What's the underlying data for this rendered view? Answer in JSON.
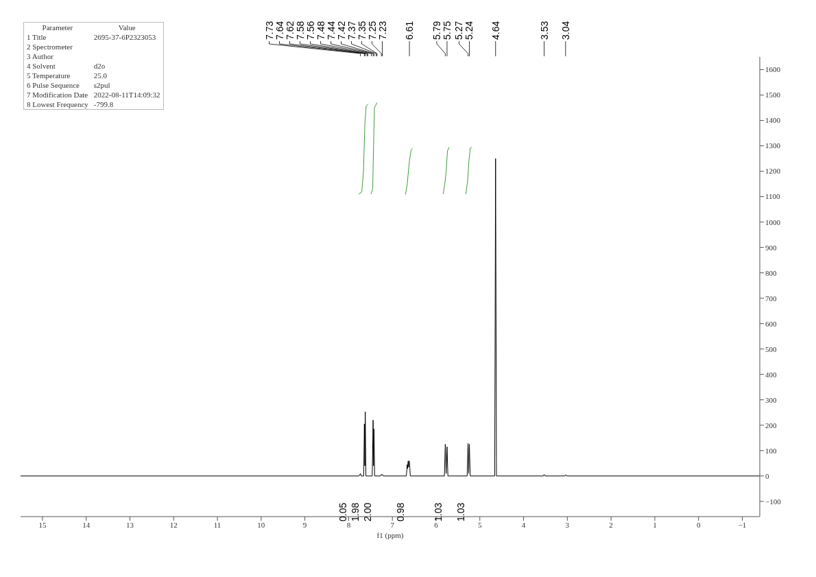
{
  "chart_data": {
    "type": "line",
    "xlabel": "f1 (ppm)",
    "xlim": [
      15.5,
      -1.4
    ],
    "xticks": [
      15,
      14,
      13,
      12,
      11,
      10,
      9,
      8,
      7,
      6,
      5,
      4,
      3,
      2,
      1,
      0,
      -1
    ],
    "ylim": [
      -160,
      1650
    ],
    "yticks": [
      -100,
      0,
      100,
      200,
      300,
      400,
      500,
      600,
      700,
      800,
      900,
      1000,
      1100,
      1200,
      1300,
      1400,
      1500,
      1600
    ],
    "grid": false,
    "marker": "none",
    "line_style": "solid",
    "series": [
      {
        "color": "#000000",
        "x": [
          15.5,
          7.76,
          7.73,
          7.71,
          7.655,
          7.64,
          7.63,
          7.62,
          7.605,
          7.46,
          7.44,
          7.43,
          7.42,
          7.405,
          7.27,
          7.25,
          7.24,
          7.23,
          7.21,
          6.68,
          6.66,
          6.65,
          6.64,
          6.63,
          6.62,
          6.61,
          6.6,
          6.59,
          5.81,
          5.79,
          5.77,
          5.75,
          5.73,
          5.29,
          5.27,
          5.255,
          5.24,
          5.22,
          4.66,
          4.64,
          4.62,
          3.55,
          3.53,
          3.51,
          3.06,
          3.04,
          3.02,
          -1.4
        ],
        "values": [
          0,
          0,
          10,
          0,
          0,
          205,
          40,
          253,
          0,
          0,
          220,
          40,
          185,
          0,
          0,
          6,
          3,
          6,
          0,
          0,
          45,
          30,
          58,
          35,
          60,
          55,
          30,
          0,
          0,
          125,
          10,
          115,
          0,
          0,
          128,
          10,
          125,
          0,
          0,
          1250,
          0,
          0,
          6,
          0,
          0,
          5,
          0,
          0
        ]
      },
      {
        "color": "#3c9c3c",
        "x": [
          7.77,
          7.7,
          7.66,
          7.63,
          7.6,
          7.55,
          7.52,
          7.49,
          7.45,
          7.43,
          7.41,
          7.35,
          7.0,
          6.7,
          6.66,
          6.61,
          6.57,
          6.54,
          6.2,
          5.84,
          5.8,
          5.77,
          5.74,
          5.7,
          5.5,
          5.32,
          5.28,
          5.25,
          5.22,
          5.18
        ],
        "values": [
          1110,
          1118,
          1200,
          1380,
          1455,
          1465,
          null,
          1110,
          1130,
          1300,
          1450,
          1470,
          null,
          1108,
          1150,
          1240,
          1285,
          1290,
          null,
          1110,
          1150,
          1200,
          1280,
          1295,
          null,
          1110,
          1160,
          1240,
          1290,
          1295
        ]
      }
    ],
    "annotations": [
      "Parameter\tValue",
      "1 Title\t2695-37-6P2323053",
      "2 Spectrometer",
      "3 Author",
      "4 Solvent\td2o",
      "5 Temperature\t25.0",
      "6 Pulse Sequence\ts2pul",
      "7 Modification Date\t2022-08-11T14:09:32",
      "8 Lowest Frequency\t-799.8",
      {
        "text": "7.73",
        "x": 7.73
      },
      {
        "text": "7.64",
        "x": 7.64
      },
      {
        "text": "7.62",
        "x": 7.62
      },
      {
        "text": "7.58",
        "x": 7.58
      },
      {
        "text": "7.56",
        "x": 7.56
      },
      {
        "text": "7.48",
        "x": 7.48
      },
      {
        "text": "7.44",
        "x": 7.44
      },
      {
        "text": "7.42",
        "x": 7.42
      },
      {
        "text": "7.37",
        "x": 7.37
      },
      {
        "text": "7.35",
        "x": 7.35
      },
      {
        "text": "7.25",
        "x": 7.25
      },
      {
        "text": "7.23",
        "x": 7.23
      },
      {
        "text": "6.61",
        "x": 6.61
      },
      {
        "text": "5.79",
        "x": 5.79
      },
      {
        "text": "5.75",
        "x": 5.75
      },
      {
        "text": "5.27",
        "x": 5.27
      },
      {
        "text": "5.24",
        "x": 5.24
      },
      {
        "text": "4.64",
        "x": 4.64
      },
      {
        "text": "3.53",
        "x": 3.53
      },
      {
        "text": "3.04",
        "x": 3.04
      },
      "0.05",
      "1.98",
      "2.00",
      "0.98",
      "1.03",
      "1.03"
    ]
  }
}
